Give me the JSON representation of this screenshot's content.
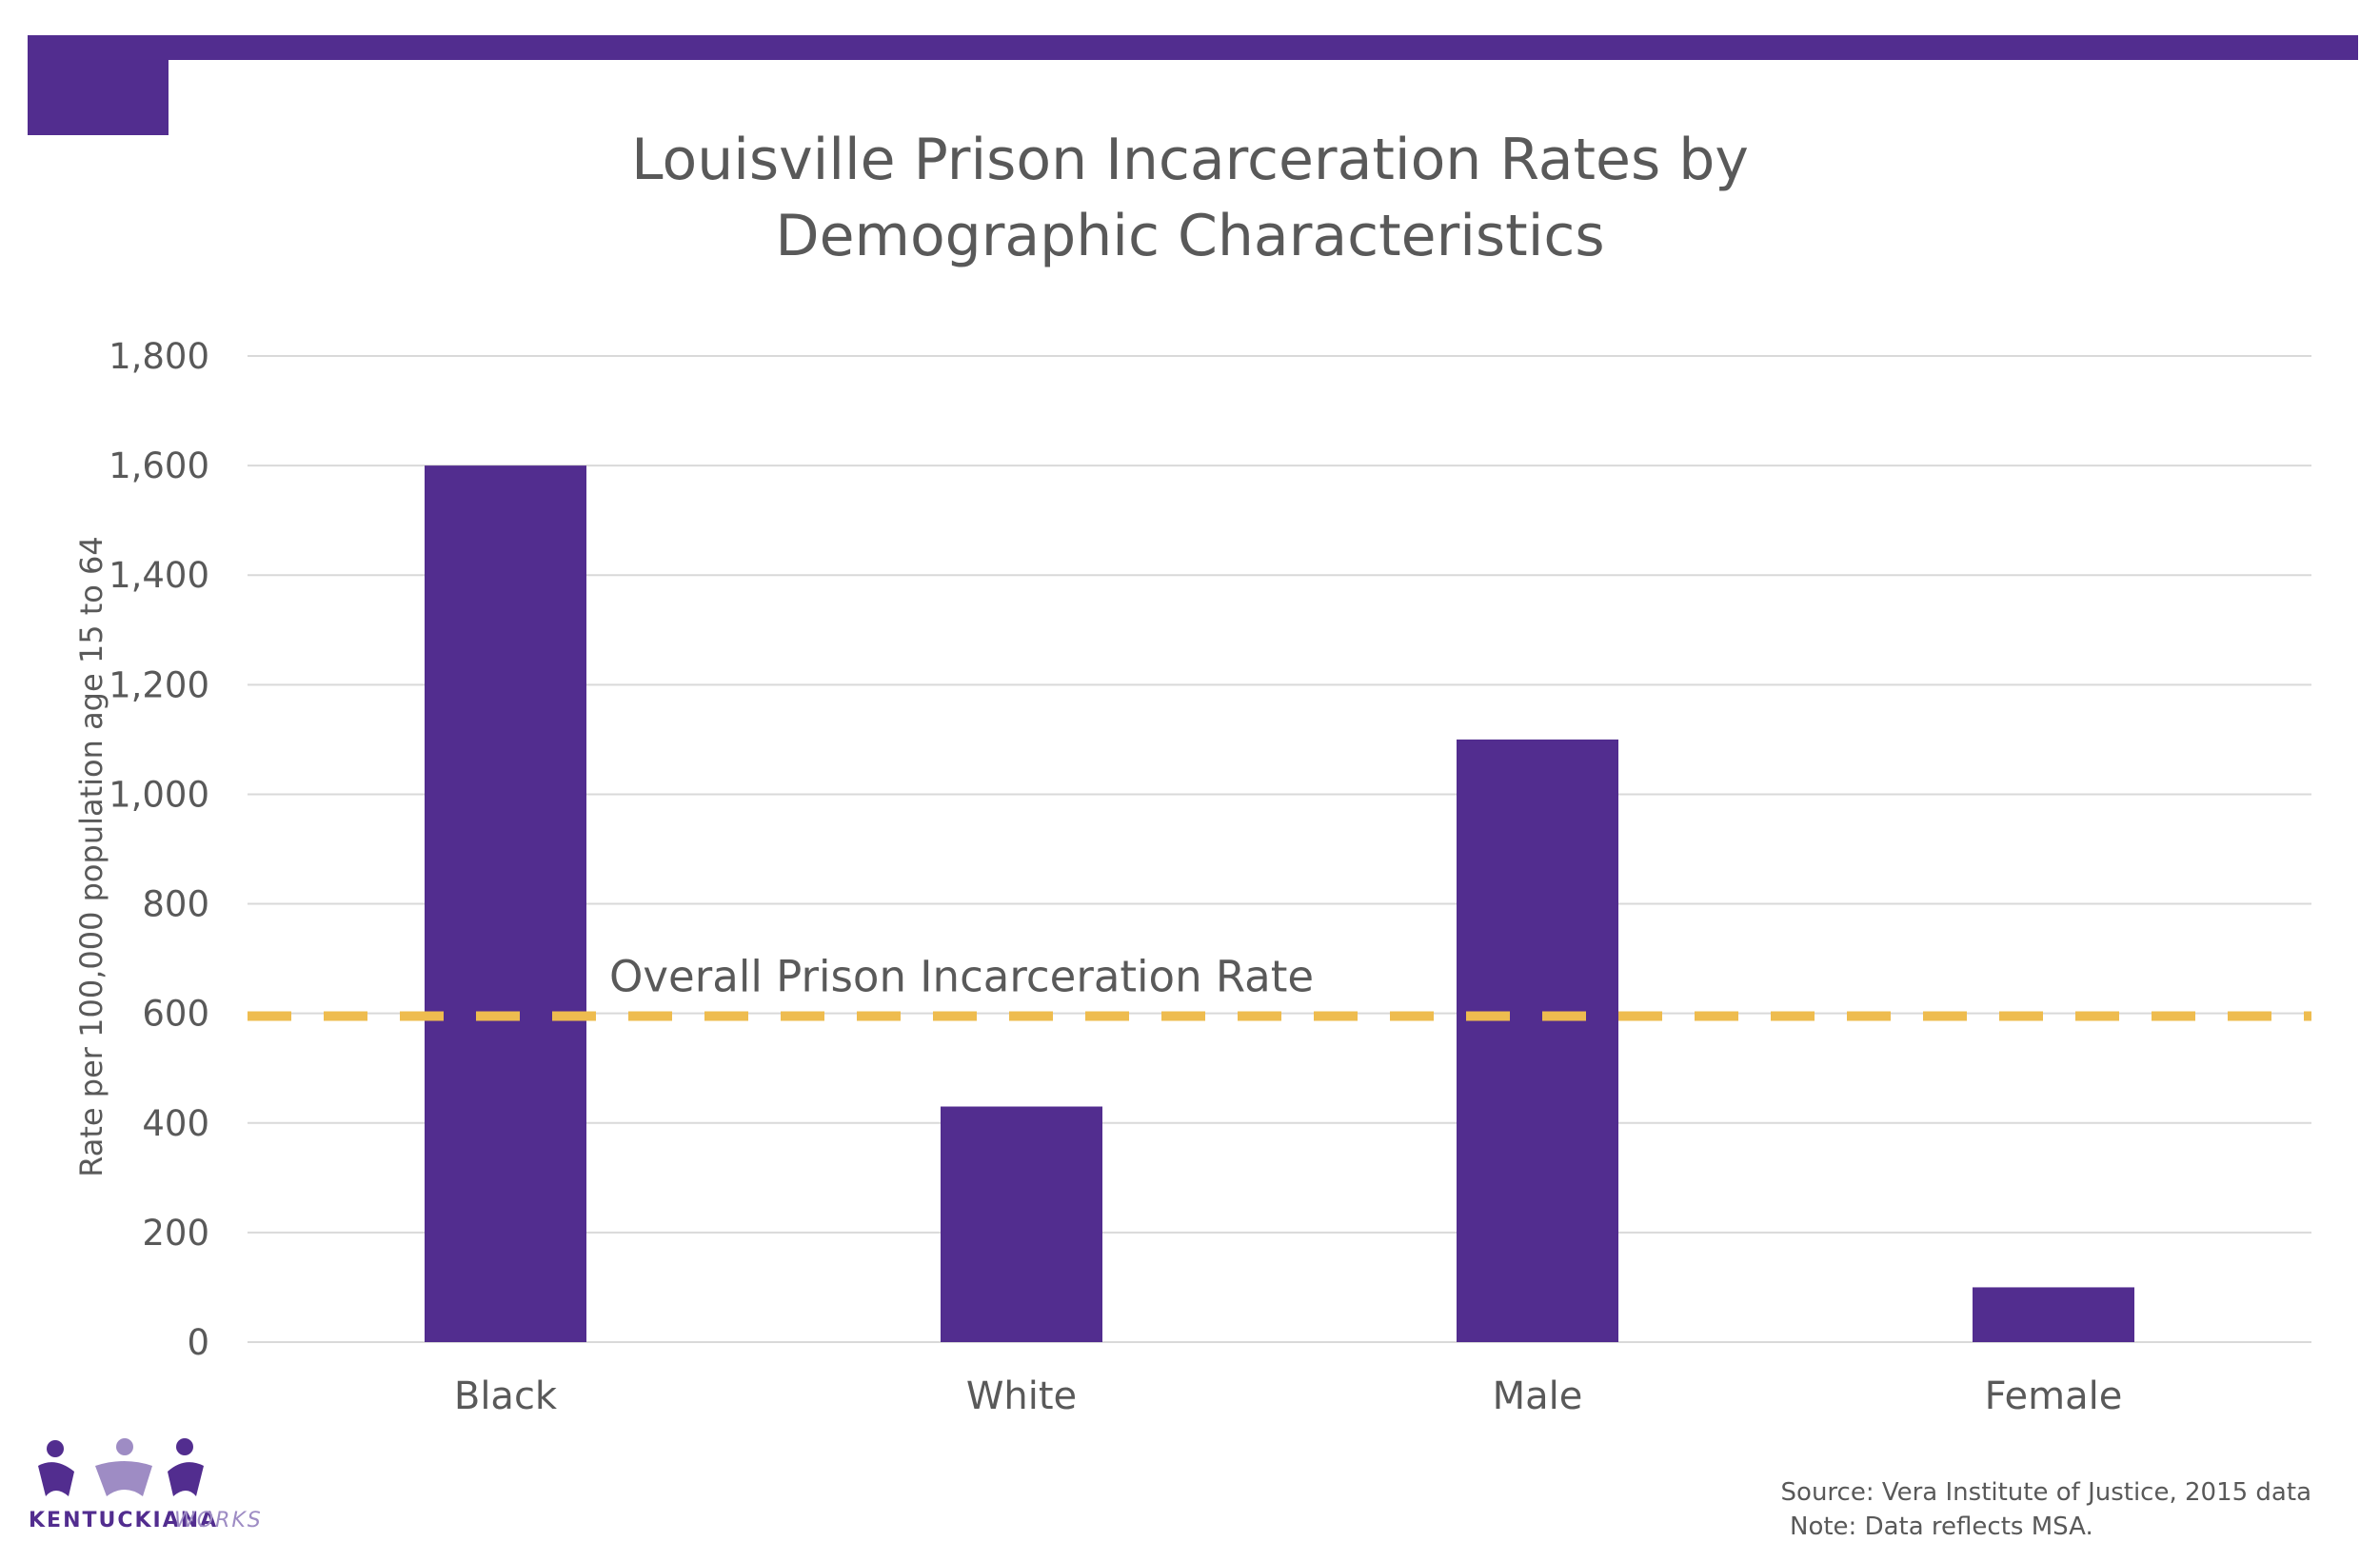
{
  "colors": {
    "bar": "#522d8f",
    "reference": "#eebc4f",
    "grid": "#d9d9d9",
    "text": "#595959",
    "logo_light": "#9e8cc4"
  },
  "chart_data": {
    "type": "bar",
    "title_lines": [
      "Louisville Prison Incarceration Rates by",
      "Demographic Characteristics"
    ],
    "ylabel": "Rate per 100,000 population age 15 to 64",
    "xlabel": "",
    "categories": [
      "Black",
      "White",
      "Male",
      "Female"
    ],
    "values": [
      1600,
      430,
      1100,
      100
    ],
    "ylim": [
      0,
      1800
    ],
    "yticks": [
      0,
      200,
      400,
      600,
      800,
      1000,
      1200,
      1400,
      1600,
      1800
    ],
    "ytick_labels": [
      "0",
      "200",
      "400",
      "600",
      "800",
      "1,000",
      "1,200",
      "1,400",
      "1,600",
      "1,800"
    ],
    "grid": true,
    "reference_line": {
      "label": "Overall Prison Incarceration Rate",
      "value": 595,
      "style": "dashed"
    }
  },
  "footer": {
    "source": "Source: Vera Institute of Justice, 2015 data",
    "note": "Note: Data reflects MSA."
  },
  "logo": {
    "part1": "KENTUCKIANA",
    "part2": "WORKS"
  }
}
